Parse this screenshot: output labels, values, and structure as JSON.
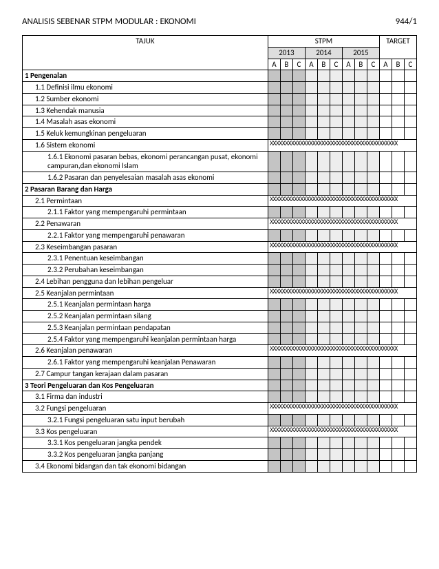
{
  "doc_title": "ANALISIS SEBENAR STPM MODULAR : EKONOMI",
  "doc_code": "944/1",
  "headers": {
    "topic": "TAJUK",
    "stpm": "STPM",
    "target": "TARGET",
    "years": [
      "2013",
      "2014",
      "2015"
    ],
    "cols": [
      "A",
      "B",
      "C"
    ]
  },
  "cross_pattern": "XXXXXXXXXXXXXXXXXXXXXXXXXXXXXXXXXXXXXXXXXX",
  "shading": {
    "year0": [
      "dark",
      "dark",
      "dark"
    ],
    "year1": [
      "light",
      "light",
      "light"
    ],
    "year2": [
      "light",
      "light",
      "light"
    ],
    "target": [
      "none",
      "none",
      "none"
    ]
  },
  "colors": {
    "shade_dark": "#c4c4c4",
    "shade_light": "#ededed",
    "border": "#000000",
    "bg": "#ffffff"
  },
  "rows": [
    {
      "label": "1 Pengenalan",
      "bold": true,
      "indent": 0,
      "crossed": false
    },
    {
      "label": "1.1 Definisi ilmu ekonomi",
      "bold": false,
      "indent": 1,
      "crossed": false
    },
    {
      "label": "1.2 Sumber ekonomi",
      "bold": false,
      "indent": 1,
      "crossed": false
    },
    {
      "label": "1.3 Kehendak manusia",
      "bold": false,
      "indent": 1,
      "crossed": false
    },
    {
      "label": "1.4 Masalah asas ekonomi",
      "bold": false,
      "indent": 1,
      "crossed": false
    },
    {
      "label": "1.5 Keluk kemungkinan pengeluaran",
      "bold": false,
      "indent": 1,
      "crossed": false
    },
    {
      "label": "1.6 Sistem ekonomi",
      "bold": false,
      "indent": 1,
      "crossed": true
    },
    {
      "label": "1.6.1 Ekonomi pasaran bebas, ekonomi perancangan pusat, ekonomi campuran,dan ekonomi Islam",
      "bold": false,
      "indent": 2,
      "crossed": false
    },
    {
      "label": "1.6.2 Pasaran dan penyelesaian masalah asas ekonomi",
      "bold": false,
      "indent": 2,
      "crossed": false
    },
    {
      "label": "2 Pasaran Barang dan Harga",
      "bold": true,
      "indent": 0,
      "crossed": false
    },
    {
      "label": "2.1 Permintaan",
      "bold": false,
      "indent": 1,
      "crossed": true
    },
    {
      "label": "2.1.1 Faktor yang mempengaruhi permintaan",
      "bold": false,
      "indent": 2,
      "crossed": false
    },
    {
      "label": "2.2 Penawaran",
      "bold": false,
      "indent": 1,
      "crossed": true
    },
    {
      "label": "2.2.1 Faktor yang mempengaruhi penawaran",
      "bold": false,
      "indent": 2,
      "crossed": false
    },
    {
      "label": "2.3 Keseimbangan pasaran",
      "bold": false,
      "indent": 1,
      "crossed": true
    },
    {
      "label": "2.3.1 Penentuan keseimbangan",
      "bold": false,
      "indent": 2,
      "crossed": false
    },
    {
      "label": "2.3.2 Perubahan keseimbangan",
      "bold": false,
      "indent": 2,
      "crossed": false
    },
    {
      "label": "2.4 Lebihan pengguna dan lebihan pengeluar",
      "bold": false,
      "indent": 1,
      "crossed": false
    },
    {
      "label": "2.5 Keanjalan permintaan",
      "bold": false,
      "indent": 1,
      "crossed": true
    },
    {
      "label": "2.5.1 Keanjalan permintaan harga",
      "bold": false,
      "indent": 2,
      "crossed": false
    },
    {
      "label": "2.5.2 Keanjalan permintaan silang",
      "bold": false,
      "indent": 2,
      "crossed": false
    },
    {
      "label": "2.5.3 Keanjalan permintaan pendapatan",
      "bold": false,
      "indent": 2,
      "crossed": false
    },
    {
      "label": "2.5.4 Faktor yang mempengaruhi keanjalan permintaan harga",
      "bold": false,
      "indent": 2,
      "crossed": false
    },
    {
      "label": "2.6 Keanjalan penawaran",
      "bold": false,
      "indent": 1,
      "crossed": true
    },
    {
      "label": "2.6.1 Faktor yang mempengaruhi keanjalan Penawaran",
      "bold": false,
      "indent": 2,
      "crossed": false
    },
    {
      "label": "2.7 Campur tangan kerajaan dalam pasaran",
      "bold": false,
      "indent": 1,
      "crossed": false
    },
    {
      "label": "3 Teori Pengeluaran dan Kos Pengeluaran",
      "bold": true,
      "indent": 0,
      "crossed": false
    },
    {
      "label": "3.1  Firma dan industri",
      "bold": false,
      "indent": 1,
      "crossed": false
    },
    {
      "label": "3.2  Fungsi pengeluaran",
      "bold": false,
      "indent": 1,
      "crossed": true
    },
    {
      "label": "3.2.1 Fungsi pengeluaran satu input berubah",
      "bold": false,
      "indent": 2,
      "crossed": false
    },
    {
      "label": "3.3  Kos pengeluaran",
      "bold": false,
      "indent": 1,
      "crossed": true
    },
    {
      "label": "3.3.1 Kos pengeluaran jangka pendek",
      "bold": false,
      "indent": 2,
      "crossed": false
    },
    {
      "label": "3.3.2 Kos pengeluaran jangka panjang",
      "bold": false,
      "indent": 2,
      "crossed": false
    },
    {
      "label": "3.4  Ekonomi bidangan dan tak ekonomi bidangan",
      "bold": false,
      "indent": 1,
      "crossed": false
    }
  ]
}
